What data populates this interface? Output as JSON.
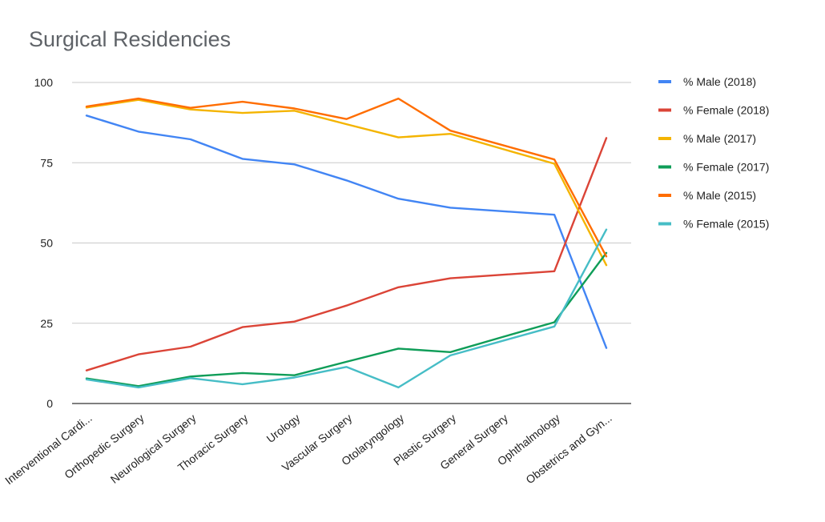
{
  "chart_data": {
    "type": "line",
    "title": "Surgical Residencies",
    "categories": [
      "Interventional Cardi...",
      "Orthopedic Surgery",
      "Neurological Surgery",
      "Thoracic Surgery",
      "Urology",
      "Vascular Surgery",
      "Otolaryngology",
      "Plastic Surgery",
      "General Surgery",
      "Ophthalmology",
      "Obstetrics and Gyn..."
    ],
    "series": [
      {
        "name": "% Male (2018)",
        "color": "#4285f4",
        "values": [
          89.7,
          84.7,
          82.3,
          76.2,
          74.5,
          69.5,
          63.8,
          61.0,
          59.9,
          58.8,
          17.3
        ]
      },
      {
        "name": "% Female (2018)",
        "color": "#db4437",
        "values": [
          10.3,
          15.3,
          17.7,
          23.8,
          25.5,
          30.5,
          36.2,
          39.0,
          40.1,
          41.2,
          82.7
        ]
      },
      {
        "name": "% Male (2017)",
        "color": "#f4b400",
        "values": [
          92.2,
          94.6,
          91.6,
          90.5,
          91.2,
          87.0,
          82.9,
          84.0,
          79.3,
          74.7,
          43.1
        ]
      },
      {
        "name": "% Female (2017)",
        "color": "#0f9d58",
        "values": [
          7.8,
          5.4,
          8.4,
          9.5,
          8.8,
          13.0,
          17.1,
          16.0,
          20.7,
          25.3,
          46.9
        ]
      },
      {
        "name": "% Male (2015)",
        "color": "#ff6d00",
        "values": [
          92.5,
          95.0,
          92.1,
          94.0,
          91.9,
          88.6,
          95.0,
          85.0,
          80.5,
          76.0,
          45.8
        ]
      },
      {
        "name": "% Female (2015)",
        "color": "#46bdc6",
        "values": [
          7.5,
          5.0,
          7.9,
          6.0,
          8.1,
          11.4,
          5.0,
          15.0,
          19.5,
          24.0,
          54.2
        ]
      }
    ],
    "ylim": [
      0,
      100
    ],
    "y_ticks": [
      0,
      25,
      50,
      75,
      100
    ],
    "grid": true,
    "legend_position": "right"
  }
}
